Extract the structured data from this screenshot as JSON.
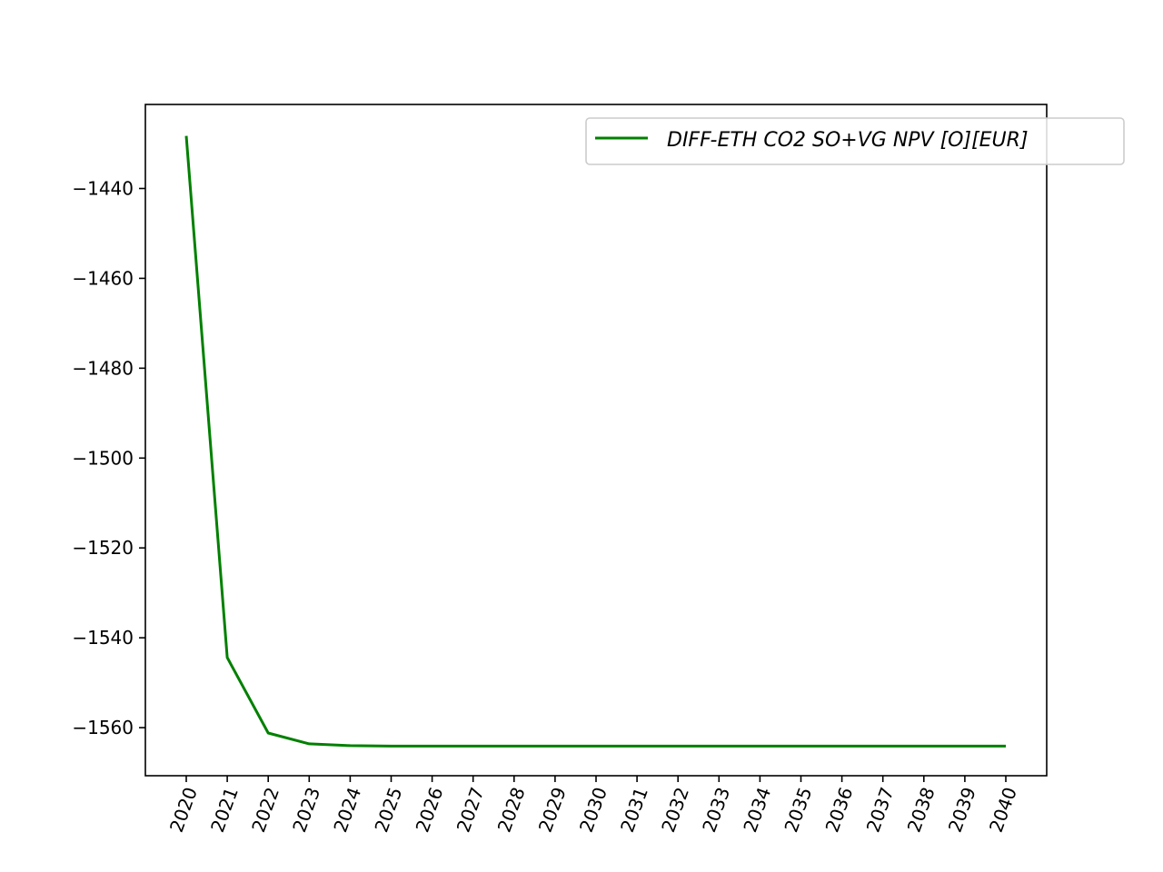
{
  "chart_data": {
    "type": "line",
    "title": "",
    "xlabel": "",
    "ylabel": "",
    "x": [
      "2020",
      "2021",
      "2022",
      "2023",
      "2024",
      "2025",
      "2026",
      "2027",
      "2028",
      "2029",
      "2030",
      "2031",
      "2032",
      "2033",
      "2034",
      "2035",
      "2036",
      "2037",
      "2038",
      "2039",
      "2040"
    ],
    "series": [
      {
        "name": "DIFF-ETH CO2 SO+VG NPV [O][EUR]",
        "color": "#008000",
        "values": [
          -1428.3,
          -1544.4,
          -1561.2,
          -1563.6,
          -1564.0,
          -1564.1,
          -1564.1,
          -1564.1,
          -1564.1,
          -1564.1,
          -1564.1,
          -1564.1,
          -1564.1,
          -1564.1,
          -1564.1,
          -1564.1,
          -1564.1,
          -1564.1,
          -1564.1,
          -1564.1,
          -1564.1
        ]
      }
    ],
    "ylim": [
      -1570.7,
      -1421.3
    ],
    "yticks": [
      -1440,
      -1460,
      -1480,
      -1500,
      -1520,
      -1540,
      -1560
    ],
    "ytick_labels": [
      "−1440",
      "−1460",
      "−1480",
      "−1500",
      "−1520",
      "−1540",
      "−1560"
    ],
    "xtick_rotation": "70 degrees",
    "grid": false,
    "legend_position": "upper-right"
  }
}
